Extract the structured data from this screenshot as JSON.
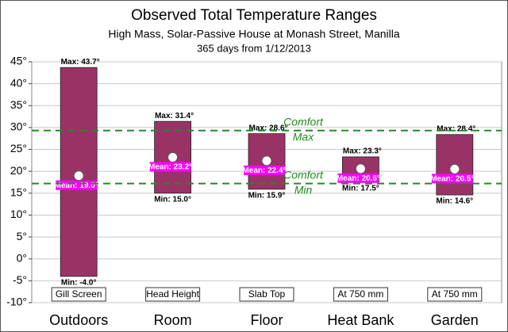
{
  "chart_data": {
    "type": "range_bar",
    "title": "Observed Total Temperature Ranges",
    "subtitle": "High Mass, Solar-Passive House at Monash Street, Manilla",
    "subtitle2": "365 days from 1/12/2013",
    "categories": [
      "Outdoors",
      "Room",
      "Floor",
      "Heat Bank",
      "Garden"
    ],
    "sublabels": [
      "Gill Screen",
      "Head Height",
      "Slab Top",
      "At 750 mm",
      "At 750 mm"
    ],
    "color": "#993366",
    "mean_color": "#ff00ff",
    "max": {
      "values": [
        43.7,
        31.4,
        28.6,
        23.3,
        28.4
      ],
      "value_labels": [
        "Max: 43.7°",
        "Max: 31.4°",
        "Max: 28.6°",
        "Max: 23.3°",
        "Max: 28.4°"
      ]
    },
    "min": {
      "values": [
        -4.0,
        15.0,
        15.9,
        17.5,
        14.6
      ],
      "value_labels": [
        "Min: -4.0°",
        "Min: 15.0°",
        "Min: 15.9°",
        "Min: 17.5°",
        "Min: 14.6°"
      ]
    },
    "mean": {
      "values": [
        19.0,
        23.2,
        22.4,
        20.6,
        20.5
      ],
      "value_labels": [
        "Mean: 19.0°",
        "Mean: 23.2°",
        "Mean: 22.4°",
        "Mean: 20.6°",
        "Mean: 20.5°"
      ]
    },
    "reference_lines": [
      {
        "label": "Comfort",
        "qualifier": "Max",
        "value": 29.3,
        "color": "#228b22"
      },
      {
        "label": "Comfort",
        "qualifier": "Min",
        "value": 17.2,
        "color": "#228b22"
      }
    ],
    "ylim": [
      -10,
      45
    ],
    "yticks": [
      {
        "value": -10,
        "label": "-10°"
      },
      {
        "value": -5,
        "label": "-5°"
      },
      {
        "value": 0,
        "label": "0°"
      },
      {
        "value": 5,
        "label": "5°"
      },
      {
        "value": 10,
        "label": "10°"
      },
      {
        "value": 15,
        "label": "15°"
      },
      {
        "value": 20,
        "label": "20°"
      },
      {
        "value": 25,
        "label": "25°"
      },
      {
        "value": 30,
        "label": "30°"
      },
      {
        "value": 35,
        "label": "35°"
      },
      {
        "value": 40,
        "label": "40°"
      },
      {
        "value": 45,
        "label": "45°"
      }
    ],
    "grid": true
  }
}
